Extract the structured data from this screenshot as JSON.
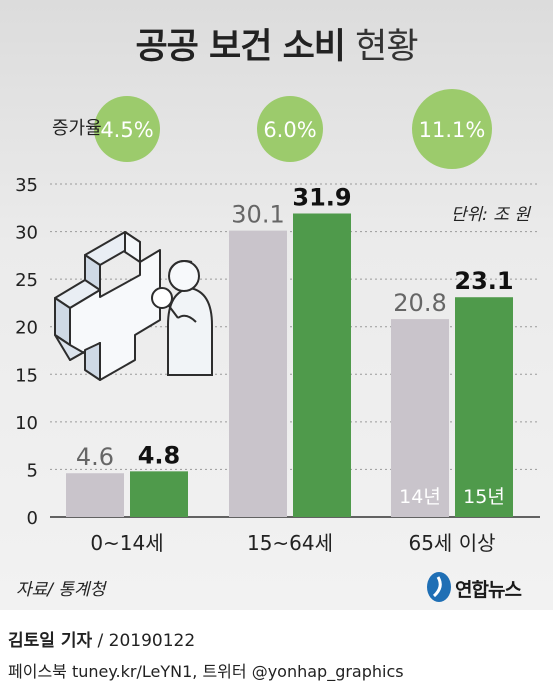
{
  "header": {
    "title_bold": "공공 보건 소비",
    "title_light": "현황"
  },
  "chart_data": {
    "type": "bar",
    "categories": [
      "0~14세",
      "15~64세",
      "65세 이상"
    ],
    "series": [
      {
        "name": "14년",
        "values": [
          4.6,
          30.1,
          20.8
        ],
        "color": "#c9c4cb"
      },
      {
        "name": "15년",
        "values": [
          4.8,
          31.9,
          23.1
        ],
        "color": "#4f9a4b"
      }
    ],
    "growth_label": "증가율",
    "growth_rates": [
      "4.5%",
      "6.0%",
      "11.1%"
    ],
    "unit": "단위: 조 원",
    "ylim": [
      0,
      35
    ],
    "yticks": [
      0,
      5,
      10,
      15,
      20,
      25,
      30,
      35
    ],
    "grid": true
  },
  "footer": {
    "source": "자료/ 통계청",
    "logo_text": "연합뉴스",
    "reporter": "김토일 기자",
    "date": " / 20190122",
    "social": "페이스북 tuney.kr/LeYN1, 트위터 @yonhap_graphics"
  },
  "colors": {
    "growth_circle": "#9ccb6c",
    "bar_2014": "#c9c4cb",
    "bar_2015": "#4f9a4b",
    "logo_blue": "#1f6fb5"
  }
}
